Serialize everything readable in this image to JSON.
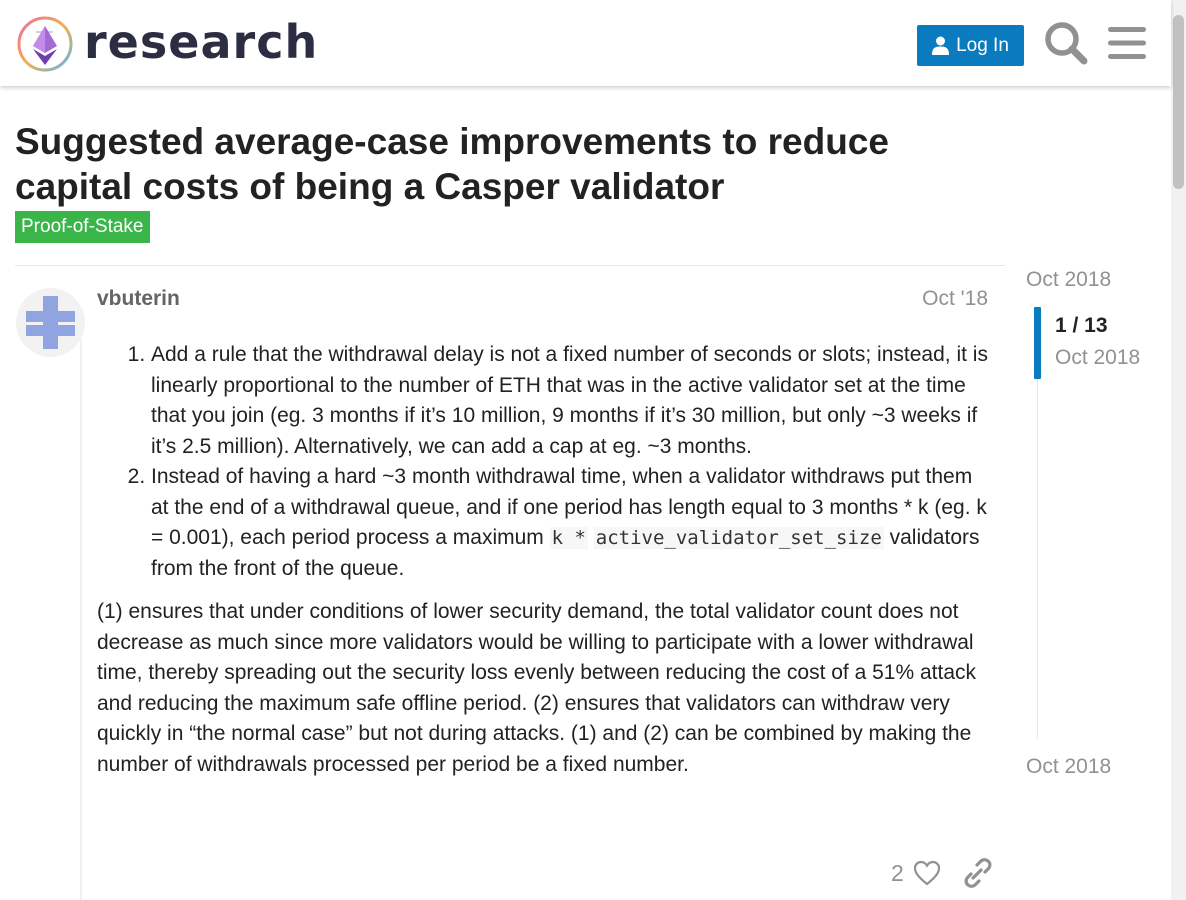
{
  "header": {
    "brand": "research",
    "login_label": "Log In",
    "icons": [
      "logo-icon",
      "user-icon",
      "search-icon",
      "hamburger-menu-icon"
    ],
    "accent_color": "#0a7bbf"
  },
  "topic": {
    "title": "Suggested average-case improvements to reduce capital costs of being a Casper validator",
    "category": "Proof-of-Stake",
    "category_color": "#3ab54a"
  },
  "post": {
    "author": "vbuterin",
    "date": "Oct '18",
    "list": [
      {
        "text": "Add a rule that the withdrawal delay is not a fixed number of seconds or slots; instead, it is linearly proportional to the number of ETH that was in the active validator set at the time that you join (eg. 3 months if it’s 10 million, 9 months if it’s 30 million, but only ~3 weeks if it’s 2.5 million). Alternatively, we can add a cap at eg. ~3 months."
      },
      {
        "text_before": "Instead of having a hard ~3 month withdrawal time, when a validator withdraws put them at the end of a withdrawal queue, and if one period has length equal to 3 months * k (eg. k = 0.001), each period process a maximum ",
        "code_part1": "k *",
        "code_part2": "active_validator_set_size",
        "text_after": " validators from the front of the queue."
      }
    ],
    "paragraph": "(1) ensures that under conditions of lower security demand, the total validator count does not decrease as much since more validators would be willing to participate with a lower withdrawal time, thereby spreading out the security loss evenly between reducing the cost of a 51% attack and reducing the maximum safe offline period. (2) ensures that validators can withdraw very quickly in “the normal case” but not during attacks. (1) and (2) can be combined by making the number of withdrawals processed per period be a fixed number.",
    "like_count": "2",
    "action_icons": [
      "heart-icon",
      "link-icon"
    ]
  },
  "timeline": {
    "start_date": "Oct 2018",
    "position": "1 / 13",
    "position_date": "Oct 2018",
    "end_date": "Oct 2018"
  }
}
